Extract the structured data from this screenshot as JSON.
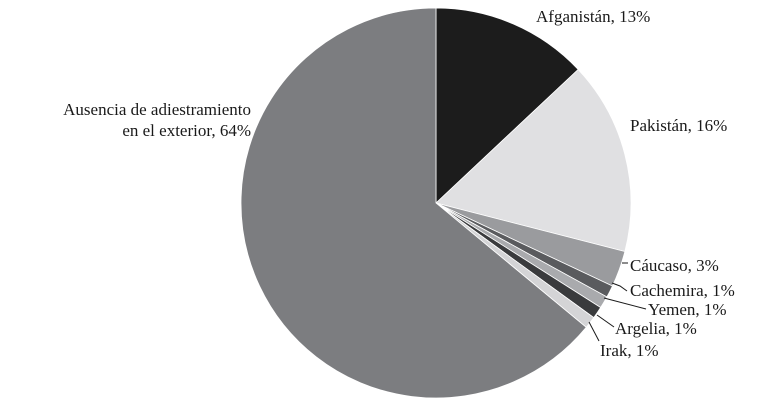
{
  "chart_data": {
    "type": "pie",
    "title": "",
    "start": "top, clockwise",
    "slices": [
      {
        "label": "Afganistán, 13%",
        "value": 13,
        "color": "#1c1c1c"
      },
      {
        "label": "Pakistán, 16%",
        "value": 16,
        "color": "#e0e0e2"
      },
      {
        "label": "Cáucaso, 3%",
        "value": 3,
        "color": "#9a9b9e"
      },
      {
        "label": "Cachemira, 1%",
        "value": 1,
        "color": "#5a5b5e"
      },
      {
        "label": "Yemen, 1%",
        "value": 1,
        "color": "#a9aaad"
      },
      {
        "label": "Argelia, 1%",
        "value": 1,
        "color": "#3a3b3d"
      },
      {
        "label": "Irak, 1%",
        "value": 1,
        "color": "#d4d4d6"
      },
      {
        "label_lines": [
          "Ausencia de adiestramiento",
          "en el exterior, 64%"
        ],
        "value": 64,
        "color": "#7c7d80"
      }
    ]
  }
}
